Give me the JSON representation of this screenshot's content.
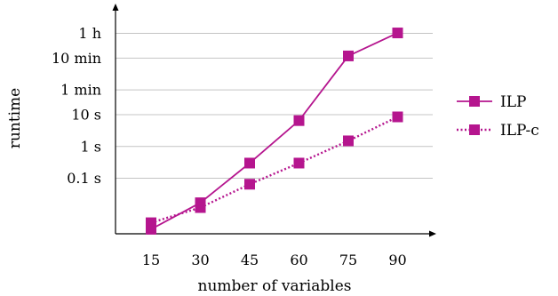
{
  "chart_data": {
    "type": "line",
    "xlabel": "number of variables",
    "ylabel": "runtime",
    "x": [
      15,
      30,
      45,
      60,
      75,
      90
    ],
    "yscale": "log",
    "yunit": "seconds",
    "ylim": [
      0.0018,
      4800
    ],
    "grid": "horizontal",
    "legend_position": "right",
    "yticks": [
      {
        "value": 0.1,
        "label": "0.1 s"
      },
      {
        "value": 1,
        "label": "1 s"
      },
      {
        "value": 10,
        "label": "10 s"
      },
      {
        "value": 60,
        "label": "1 min"
      },
      {
        "value": 600,
        "label": "10 min"
      },
      {
        "value": 3600,
        "label": "1 h"
      }
    ],
    "xticks": [
      "15",
      "30",
      "45",
      "60",
      "75",
      "90"
    ],
    "series": [
      {
        "name": "ILP",
        "style": "solid",
        "color": "#b5158e",
        "values": [
          0.0025,
          0.017,
          0.3,
          6.5,
          700,
          3700
        ]
      },
      {
        "name": "ILP-c",
        "style": "dotted",
        "color": "#b5158e",
        "values": [
          0.004,
          0.012,
          0.065,
          0.3,
          1.5,
          8.5
        ]
      }
    ]
  }
}
